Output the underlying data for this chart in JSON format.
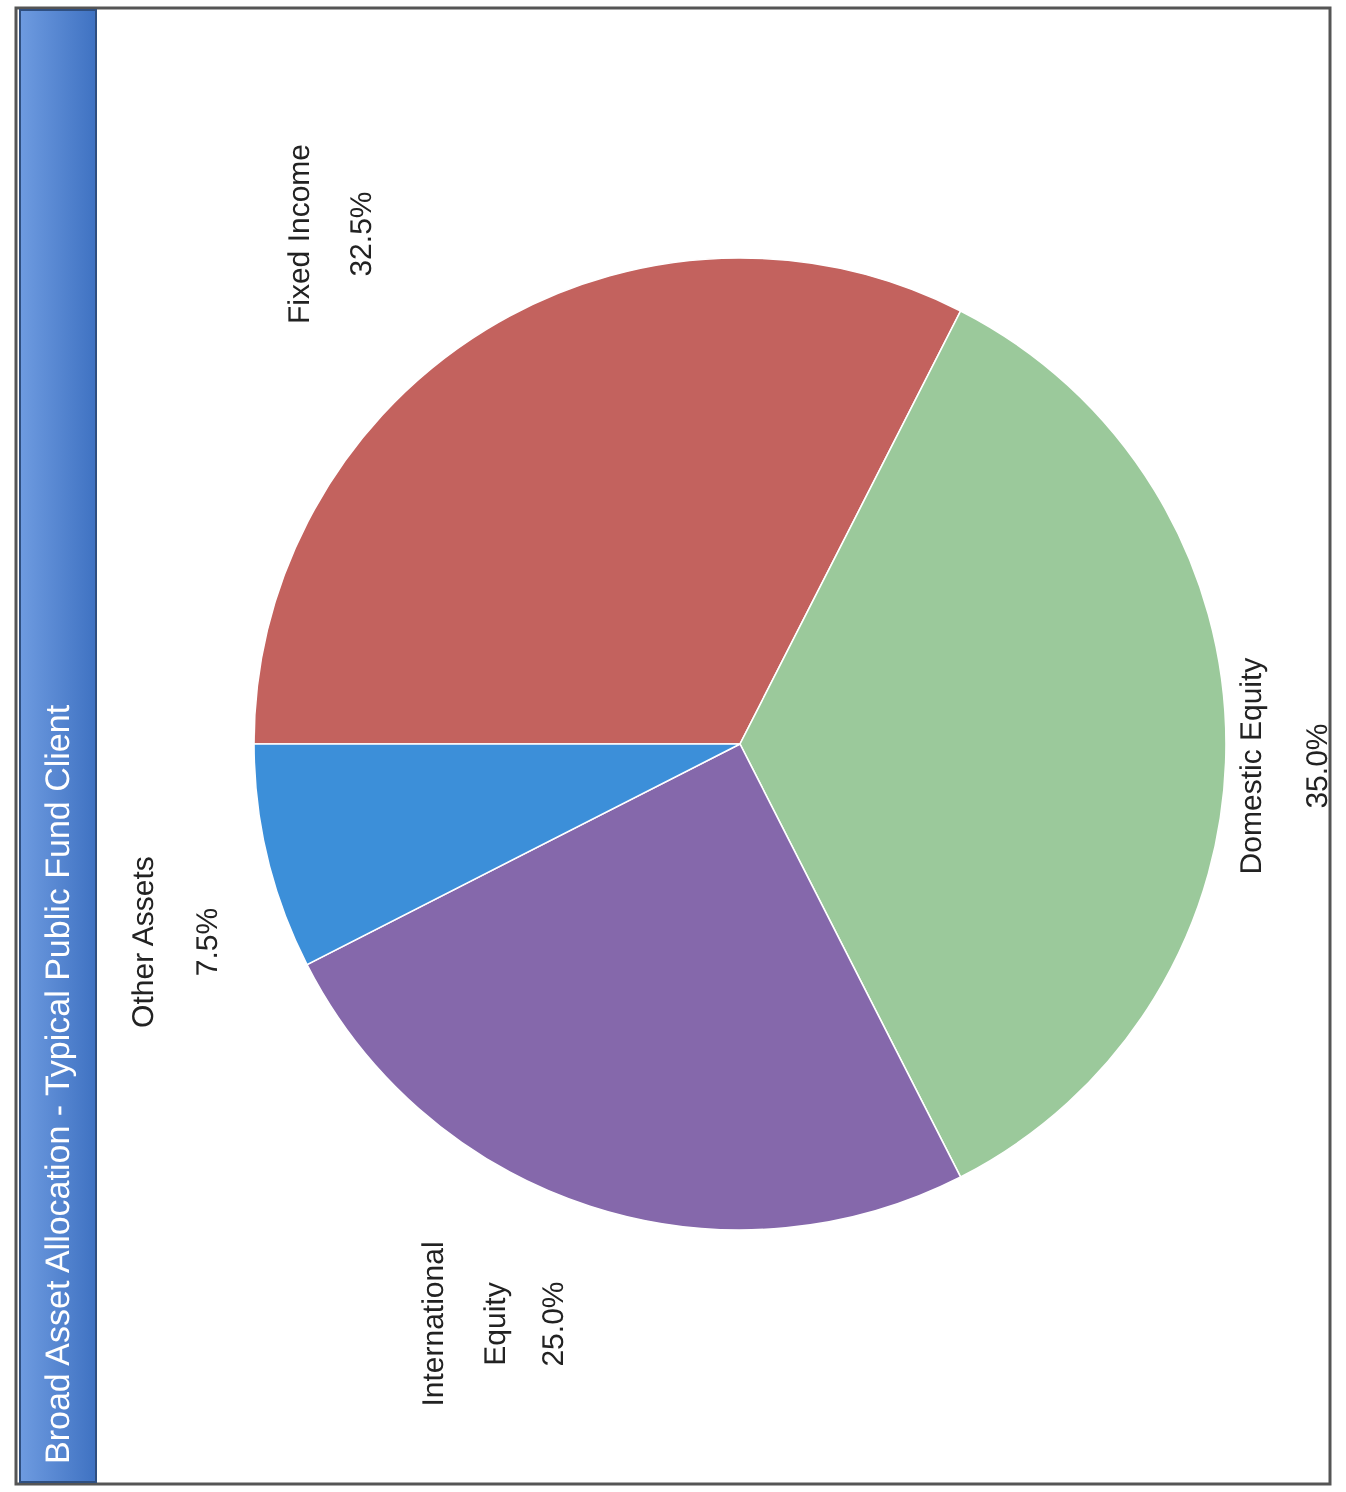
{
  "chart_data": {
    "type": "pie",
    "title": "Broad Asset Allocation - Typical Public Fund Client",
    "categories": [
      "Fixed Income",
      "Domestic Equity",
      "International Equity",
      "Other Assets"
    ],
    "values": [
      32.5,
      35.0,
      25.0,
      7.5
    ],
    "value_labels": [
      "32.5%",
      "35.0%",
      "25.0%",
      "7.5%"
    ],
    "colors": [
      "#c3625e",
      "#9bc99b",
      "#8568ab",
      "#3c8fd9"
    ]
  }
}
